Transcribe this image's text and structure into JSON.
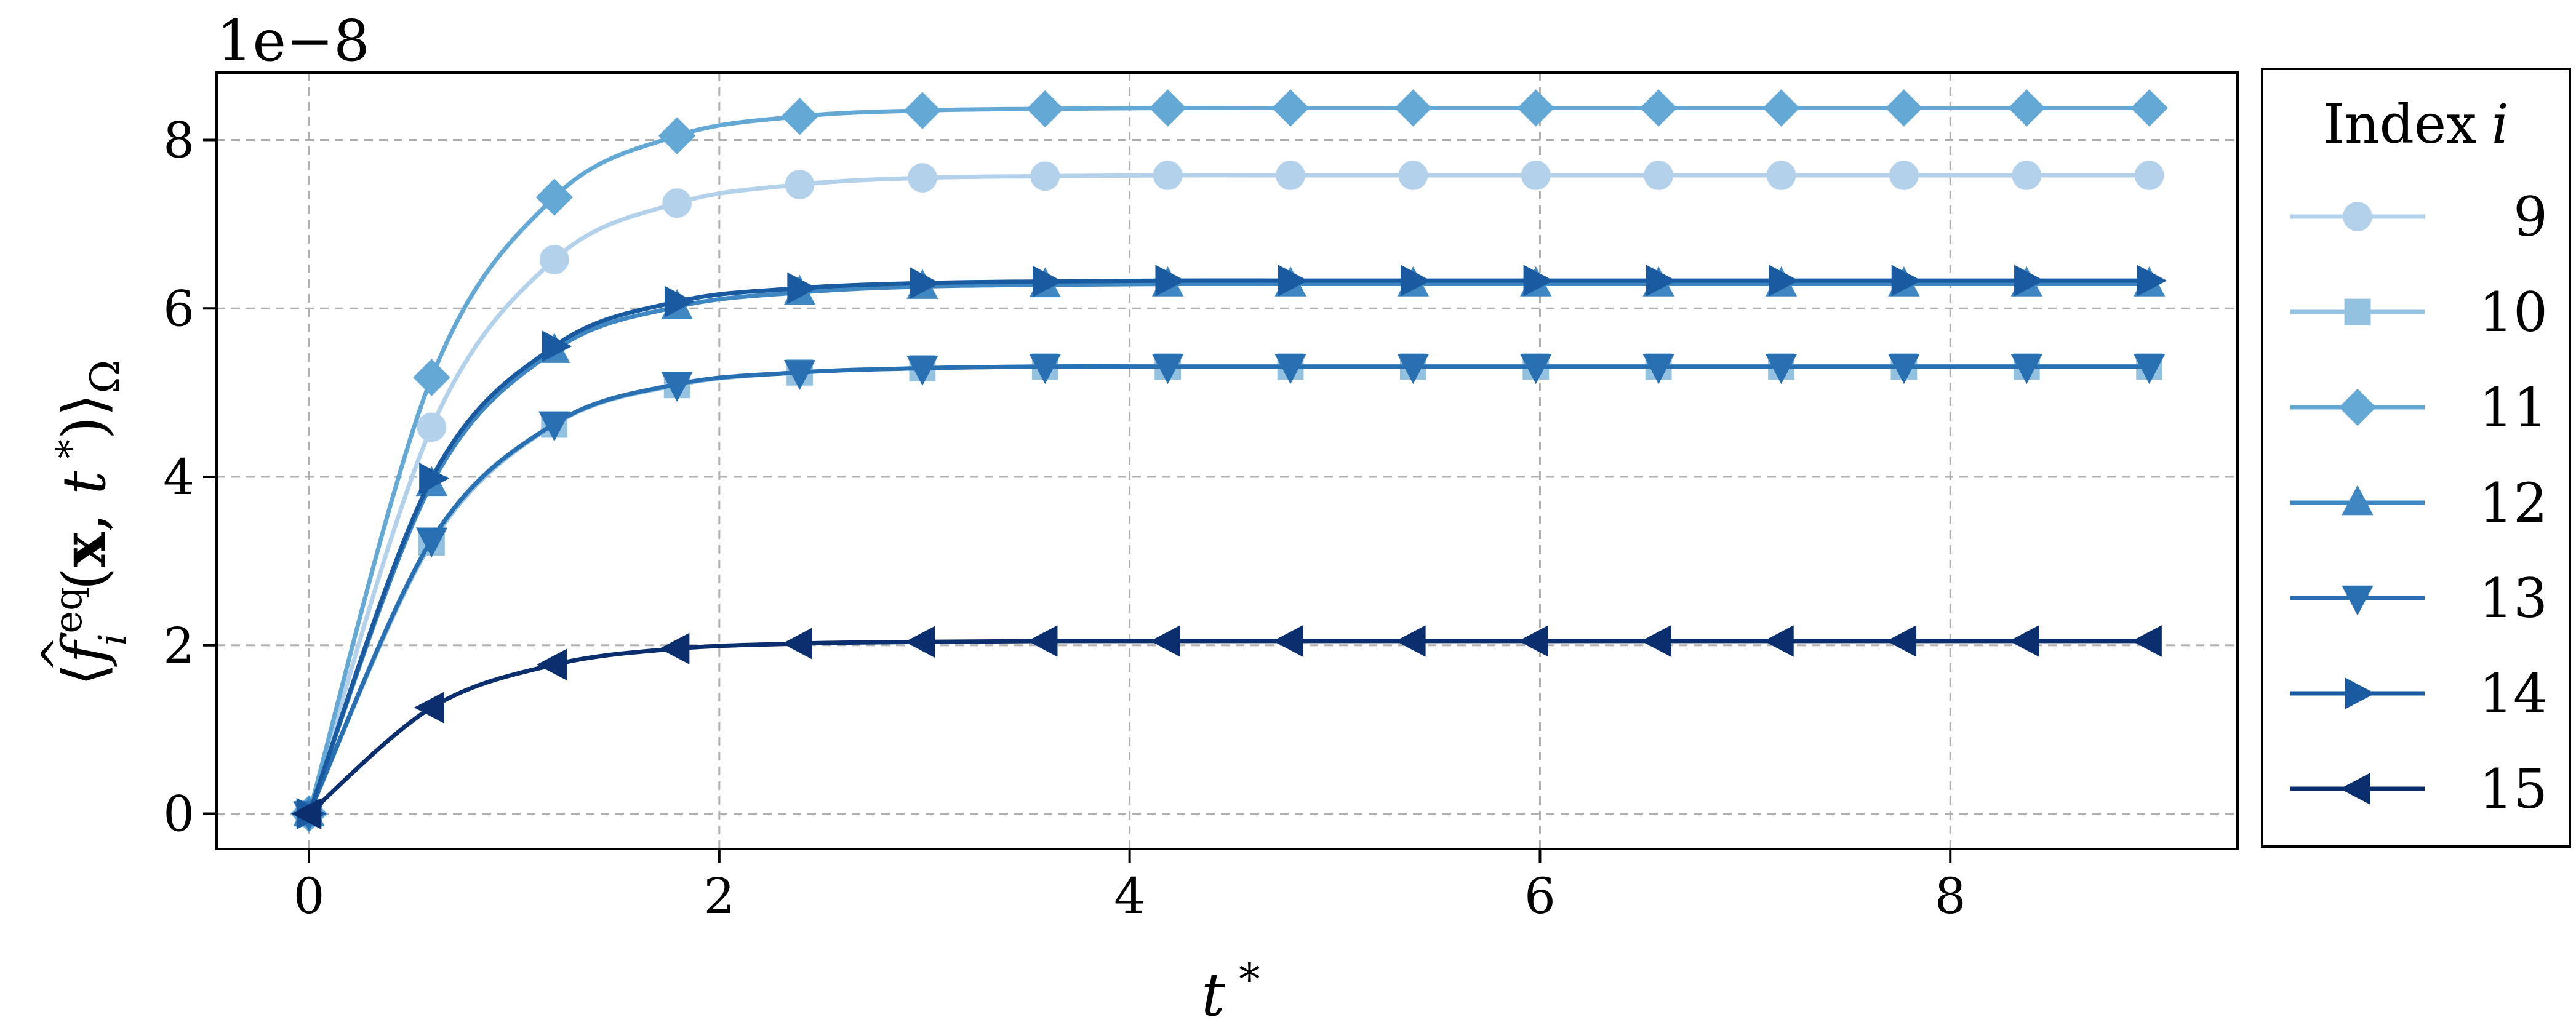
{
  "chart_data": {
    "type": "line",
    "title": "",
    "xlabel": "t *",
    "ylabel": "⟨ f̂ eq i (x, t *) ⟩ Ω",
    "ylabel_parts": {
      "open": "⟨",
      "f": "f",
      "hat": "^",
      "sup": "eq",
      "sub": "i",
      "args_open": "(",
      "x": "x",
      "comma": ", ",
      "t": "t",
      "star": " *",
      "args_close": ")",
      "close": "⟩",
      "omega": "Ω"
    },
    "xlabel_parts": {
      "t": "t",
      "star": " *"
    },
    "y_offset_text": "1e−8",
    "y_scale": 1e-08,
    "xlim": [
      -0.45,
      9.4
    ],
    "ylim": [
      -0.42,
      8.8
    ],
    "xticks": [
      0,
      2,
      4,
      6,
      8
    ],
    "yticks": [
      0,
      2,
      4,
      6,
      8
    ],
    "grid": true,
    "legend": {
      "title_text": "Index",
      "title_var": "i",
      "placement": "outside-right"
    },
    "x": [
      0,
      0.598,
      1.196,
      1.794,
      2.392,
      2.99,
      3.588,
      4.186,
      4.784,
      5.382,
      5.98,
      6.578,
      7.176,
      7.774,
      8.372,
      8.97
    ],
    "series": [
      {
        "name": "9",
        "marker": "circle",
        "color": "#b3d1eb",
        "values": [
          0,
          4.59,
          6.58,
          7.25,
          7.47,
          7.55,
          7.57,
          7.58,
          7.58,
          7.58,
          7.58,
          7.58,
          7.58,
          7.58,
          7.58,
          7.58
        ]
      },
      {
        "name": "10",
        "marker": "square",
        "color": "#93c2e0",
        "values": [
          0,
          3.22,
          4.62,
          5.09,
          5.24,
          5.29,
          5.31,
          5.31,
          5.31,
          5.31,
          5.31,
          5.31,
          5.31,
          5.31,
          5.31,
          5.31
        ]
      },
      {
        "name": "11",
        "marker": "diamond",
        "color": "#64a8d6",
        "values": [
          0,
          5.18,
          7.32,
          8.05,
          8.28,
          8.35,
          8.37,
          8.38,
          8.38,
          8.38,
          8.38,
          8.38,
          8.38,
          8.38,
          8.38,
          8.38
        ]
      },
      {
        "name": "12",
        "marker": "triangle-up",
        "color": "#3e87c2",
        "values": [
          0,
          3.92,
          5.5,
          6.02,
          6.19,
          6.26,
          6.28,
          6.29,
          6.29,
          6.29,
          6.29,
          6.29,
          6.29,
          6.29,
          6.29,
          6.29
        ]
      },
      {
        "name": "13",
        "marker": "triangle-down",
        "color": "#2870b1",
        "values": [
          0,
          3.25,
          4.63,
          5.1,
          5.24,
          5.29,
          5.31,
          5.31,
          5.31,
          5.31,
          5.31,
          5.31,
          5.31,
          5.31,
          5.31,
          5.31
        ]
      },
      {
        "name": "14",
        "marker": "triangle-right",
        "color": "#1a5aa0",
        "values": [
          0,
          3.98,
          5.55,
          6.08,
          6.24,
          6.3,
          6.32,
          6.33,
          6.33,
          6.33,
          6.33,
          6.33,
          6.33,
          6.33,
          6.33,
          6.33
        ]
      },
      {
        "name": "15",
        "marker": "triangle-left",
        "color": "#0b2f6e",
        "values": [
          0,
          1.26,
          1.77,
          1.96,
          2.02,
          2.04,
          2.05,
          2.05,
          2.05,
          2.05,
          2.05,
          2.05,
          2.05,
          2.05,
          2.05,
          2.05
        ]
      }
    ]
  }
}
